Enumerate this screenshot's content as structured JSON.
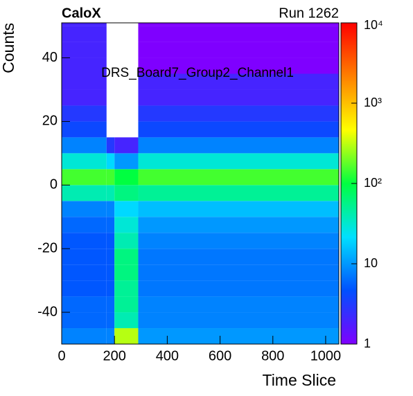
{
  "chart_data": {
    "type": "heatmap",
    "title": "DRS_Board7_Group2_Channel1",
    "label_left": "CaloX",
    "label_right": "Run 1262",
    "x_label": "Time Slice",
    "y_label": "Counts",
    "xlim": [
      0,
      1050
    ],
    "ylim": [
      -50,
      51
    ],
    "xticks": [
      0,
      200,
      400,
      600,
      800,
      1000
    ],
    "yticks": [
      -40,
      -20,
      0,
      20,
      40
    ],
    "zlim": [
      1,
      10000
    ],
    "zlog": true,
    "zticks": [
      1,
      10,
      {
        "value": 100,
        "label": "10²"
      },
      {
        "value": 1000,
        "label": "10³"
      },
      {
        "value": 10000,
        "label": "10⁴"
      }
    ],
    "colors": [
      "#7f00ff",
      "#0050ff",
      "#00e0ff",
      "#00ff40",
      "#ffff00",
      "#ff8000",
      "#ff0000"
    ],
    "x_edges": [
      0,
      170,
      200,
      290,
      1050
    ],
    "y_edges": [
      -50,
      -45,
      -40,
      -35,
      -30,
      -25,
      -20,
      -15,
      -10,
      -5,
      0,
      5,
      10,
      15,
      20,
      25,
      30,
      35,
      40,
      45,
      50,
      51
    ],
    "z": [
      [
        8,
        8,
        300,
        10
      ],
      [
        6,
        6,
        40,
        8
      ],
      [
        6,
        6,
        50,
        8
      ],
      [
        5,
        5,
        50,
        7
      ],
      [
        5,
        5,
        60,
        7
      ],
      [
        5,
        5,
        60,
        7
      ],
      [
        5,
        5,
        40,
        8
      ],
      [
        6,
        6,
        30,
        10
      ],
      [
        8,
        8,
        20,
        15
      ],
      [
        40,
        40,
        60,
        50
      ],
      [
        150,
        150,
        100,
        150
      ],
      [
        30,
        20,
        10,
        30
      ],
      [
        8,
        3,
        2,
        8
      ],
      [
        4,
        null,
        null,
        4
      ],
      [
        3,
        null,
        null,
        3
      ],
      [
        2,
        null,
        null,
        2
      ],
      [
        2,
        null,
        null,
        2
      ],
      [
        2,
        null,
        null,
        1
      ],
      [
        2,
        null,
        null,
        1
      ],
      [
        2,
        null,
        null,
        1
      ],
      [
        2,
        null,
        null,
        1
      ]
    ]
  }
}
